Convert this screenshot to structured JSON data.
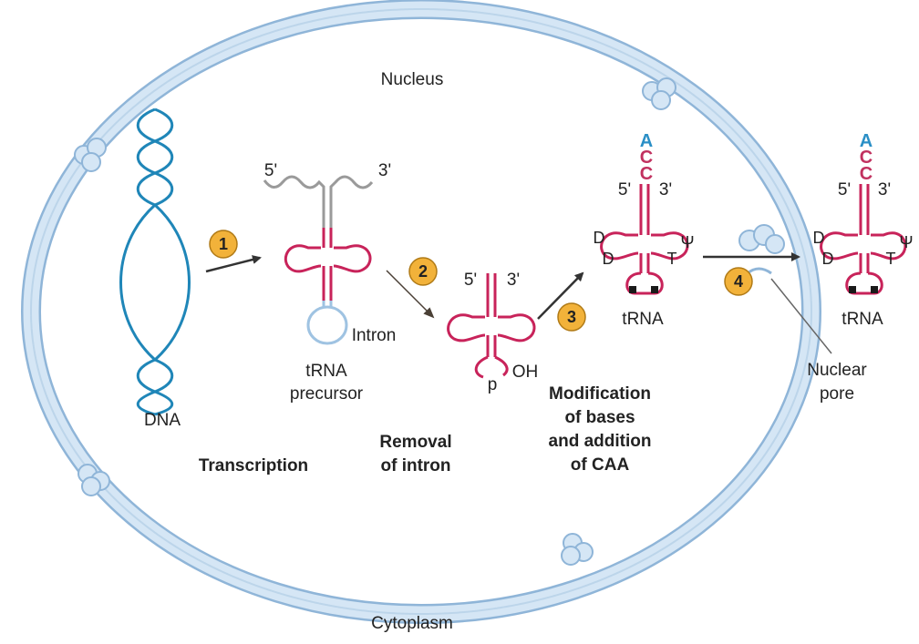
{
  "labels": {
    "nucleus": "Nucleus",
    "cytoplasm": "Cytoplasm",
    "dna": "DNA",
    "intron": "Intron",
    "trna_precursor_line1": "tRNA",
    "trna_precursor_line2": "precursor",
    "nuclear_pore_line1": "Nuclear",
    "nuclear_pore_line2": "pore",
    "trna_modified": "tRNA",
    "trna_exported": "tRNA",
    "five_prime": "5'",
    "three_prime": "3'",
    "phosphate": "p",
    "hydroxyl": "OH",
    "base_a": "A",
    "base_c": "C",
    "mod_d": "D",
    "mod_t": "T",
    "mod_psi": "Ψ"
  },
  "steps": [
    {
      "number": "1",
      "caption_line1": "Transcription",
      "caption_line2": ""
    },
    {
      "number": "2",
      "caption_line1": "Removal",
      "caption_line2": "of intron"
    },
    {
      "number": "3",
      "caption_line1": "Modification",
      "caption_line2": "of bases",
      "caption_line3": "and addition",
      "caption_line4": "of CAA"
    },
    {
      "number": "4"
    }
  ],
  "colors": {
    "membrane_fill": "#d5e6f5",
    "membrane_stroke": "#8fb5d8",
    "dna": "#1f86b8",
    "trna": "#c8235a",
    "step_badge": "#f2b23a",
    "accepter_a": "#2a8fc6",
    "accepter_c": "#c1315f"
  }
}
